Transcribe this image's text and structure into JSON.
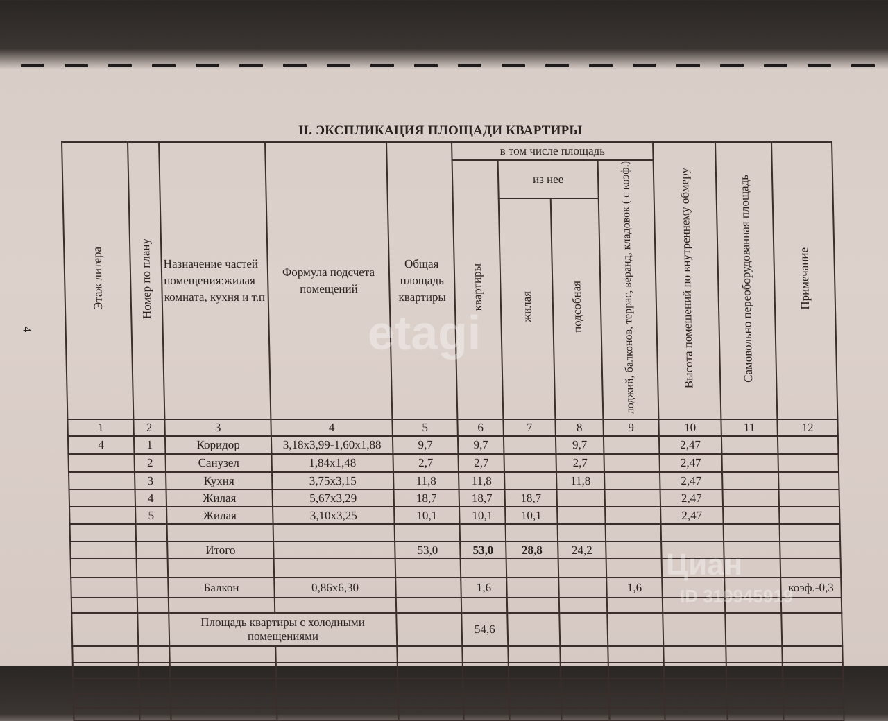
{
  "page_number": "4",
  "title": "II. ЭКСПЛИКАЦИЯ ПЛОЩАДИ КВАРТИРЫ",
  "headers": {
    "c1": "Этаж литера",
    "c2": "Номер по плану",
    "c3": "Назначение частей помещения:жилая комната, кухня и т.п",
    "c4": "Формула подсчета помещений",
    "c5": "Общая площадь квартиры",
    "group": "в том числе площадь",
    "c6": "квартиры",
    "subgroup": "из нее",
    "c7": "жилая",
    "c8": "подсобная",
    "c9": "лоджий, балконов, террас, веранд, кладовок ( с коэф.)",
    "c10": "Высота помещений по внутреннему обмеру",
    "c11": "Самовольно переоборудованная площадь",
    "c12": "Примечание"
  },
  "column_numbers": [
    "1",
    "2",
    "3",
    "4",
    "5",
    "6",
    "7",
    "8",
    "9",
    "10",
    "11",
    "12"
  ],
  "rows": [
    [
      "4",
      "1",
      "Коридор",
      "3,18х3,99-1,60х1,88",
      "9,7",
      "9,7",
      "",
      "9,7",
      "",
      "2,47",
      "",
      ""
    ],
    [
      "",
      "2",
      "Санузел",
      "1,84х1,48",
      "2,7",
      "2,7",
      "",
      "2,7",
      "",
      "2,47",
      "",
      ""
    ],
    [
      "",
      "3",
      "Кухня",
      "3,75х3,15",
      "11,8",
      "11,8",
      "",
      "11,8",
      "",
      "2,47",
      "",
      ""
    ],
    [
      "",
      "4",
      "Жилая",
      "5,67х3,29",
      "18,7",
      "18,7",
      "18,7",
      "",
      "",
      "2,47",
      "",
      ""
    ],
    [
      "",
      "5",
      "Жилая",
      "3,10х3,25",
      "10,1",
      "10,1",
      "10,1",
      "",
      "",
      "2,47",
      "",
      ""
    ],
    [
      "",
      "",
      "",
      "",
      "",
      "",
      "",
      "",
      "",
      "",
      "",
      ""
    ],
    [
      "",
      "",
      "Итого",
      "",
      "53,0",
      "53,0",
      "28,8",
      "24,2",
      "",
      "",
      "",
      ""
    ],
    [
      "",
      "",
      "",
      "",
      "",
      "",
      "",
      "",
      "",
      "",
      "",
      ""
    ],
    [
      "",
      "",
      "Балкон",
      "0,86х6,30",
      "",
      "1,6",
      "",
      "",
      "1,6",
      "",
      "",
      "коэф.-0,3"
    ],
    [
      "",
      "",
      "",
      "",
      "",
      "",
      "",
      "",
      "",
      "",
      "",
      ""
    ]
  ],
  "cold_total": {
    "label": "Площадь квартиры с холодными помещениями",
    "value": "54,6"
  },
  "watermarks": [
    "etagi",
    "Циан",
    "ID 319945919"
  ]
}
